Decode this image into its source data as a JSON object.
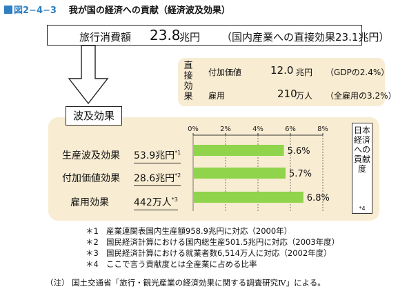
{
  "figure": {
    "number": "図2−4−3",
    "title": "我が国の経済への貢献（経済波及効果）"
  },
  "total": {
    "label": "旅行消費額",
    "value": "23.8",
    "unit": "兆円",
    "note": "（国内産業への直接効果23.1兆円）"
  },
  "direct": {
    "label": "直接効果",
    "rows": [
      {
        "name": "付加価値",
        "value": "12.0",
        "unit": "兆円",
        "share": "（GDPの2.4%）"
      },
      {
        "name": "雇用",
        "value": "210",
        "unit": "万人",
        "share": "（全雇用の3.2%）"
      }
    ]
  },
  "wave_label": "波及効果",
  "impact_label": "日本経済への貢献度",
  "impact_note": "*4",
  "chart_data": {
    "type": "bar",
    "orientation": "horizontal",
    "x_ticks": [
      "0%",
      "2%",
      "4%",
      "6%",
      "8%"
    ],
    "xlim": [
      0,
      8
    ],
    "grid": true,
    "categories": [
      "生産波及効果",
      "付加価値効果",
      "雇用効果"
    ],
    "amounts": [
      "53.9兆円",
      "28.6兆円",
      "442万人"
    ],
    "note_marks": [
      "*1",
      "*2",
      "*3"
    ],
    "values": [
      5.6,
      5.7,
      6.8
    ],
    "value_labels": [
      "5.6%",
      "5.7%",
      "6.8%"
    ],
    "bar_color": "#8fd44a"
  },
  "notes": [
    {
      "mark": "＊1",
      "text": "産業連関表国内生産額958.9兆円に対応（2000年）"
    },
    {
      "mark": "＊2",
      "text": "国民経済計算における国内総生産501.5兆円に対応（2003年度）"
    },
    {
      "mark": "＊3",
      "text": "国民経済計算における就業者数6,514万人に対応（2002年度）"
    },
    {
      "mark": "＊4",
      "text": "ここで言う貢献度とは全産業に占める比率"
    }
  ],
  "footer": "（注） 国土交通省「旅行・観光産業の経済効果に関する調査研究Ⅳ」による。"
}
